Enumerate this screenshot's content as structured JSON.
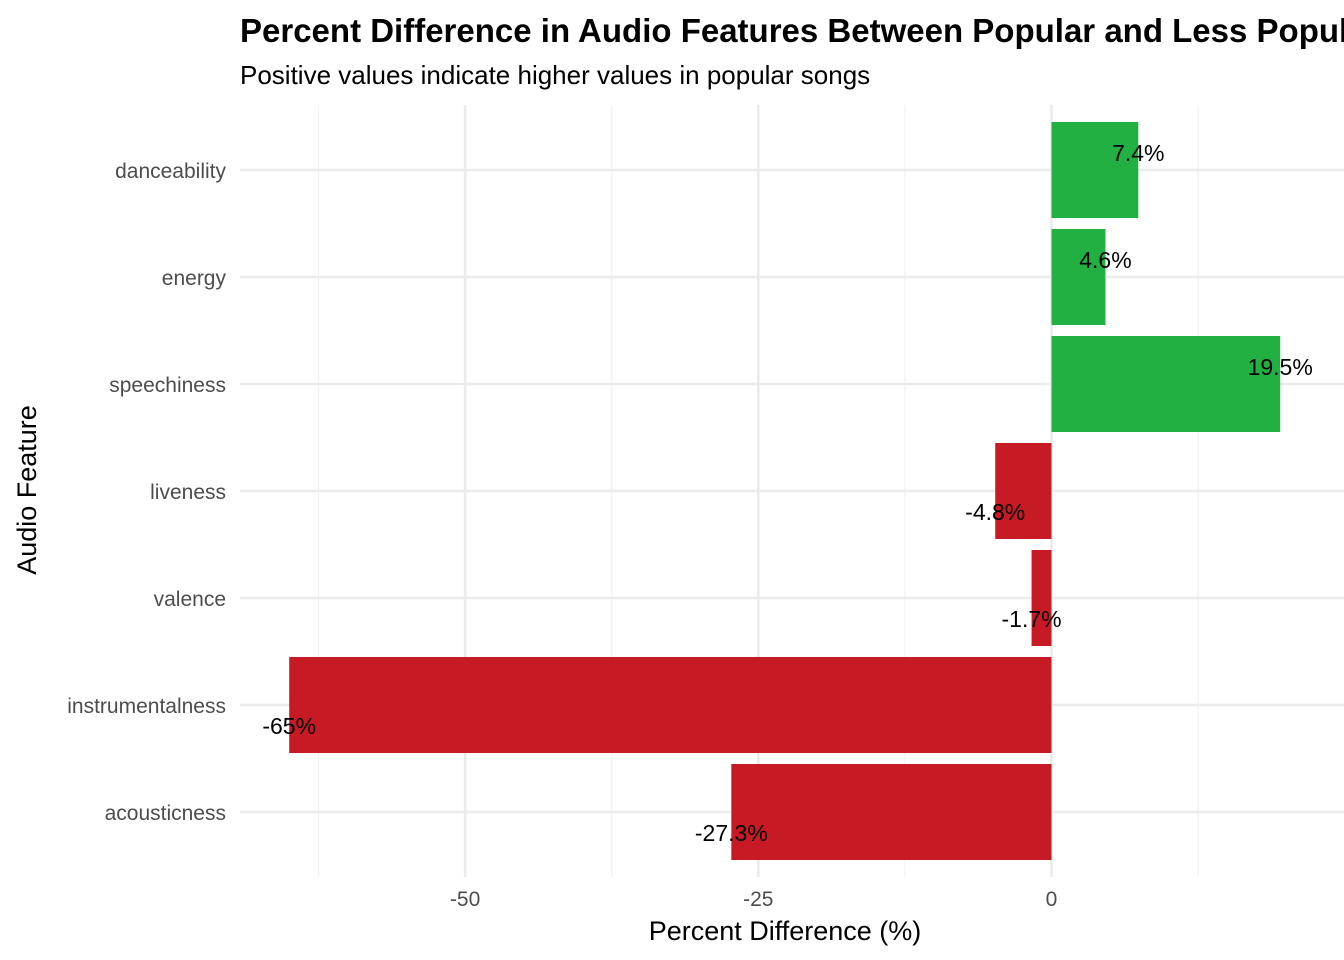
{
  "chart_data": {
    "type": "bar",
    "orientation": "horizontal",
    "title": "Percent Difference in Audio Features Between Popular and Less Popular Songs",
    "subtitle": "Positive values indicate higher values in popular songs",
    "xlabel": "Percent Difference (%)",
    "ylabel": "Audio Feature",
    "categories": [
      "danceability",
      "energy",
      "speechiness",
      "liveness",
      "valence",
      "instrumentalness",
      "acousticness"
    ],
    "values": [
      7.4,
      4.6,
      19.5,
      -4.8,
      -1.7,
      -65,
      -27.3
    ],
    "data_labels": [
      "7.4%",
      "4.6%",
      "19.5%",
      "-4.8%",
      "-1.7%",
      "-65%",
      "-27.3%"
    ],
    "xlim": [
      -65,
      19.5
    ],
    "x_ticks": [
      -50,
      -25,
      0
    ],
    "x_tick_labels": [
      "-50",
      "-25",
      "0"
    ],
    "grid": true,
    "legend": "none",
    "colors": {
      "positive": "#22b043",
      "negative": "#c61b24"
    }
  }
}
